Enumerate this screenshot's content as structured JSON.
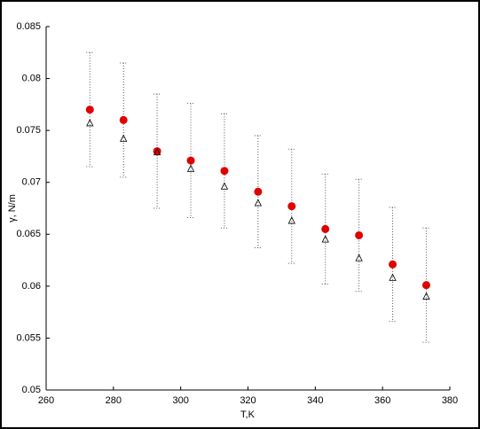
{
  "chart_data": {
    "type": "scatter",
    "x_label": "T,K",
    "y_label": "γ, N/m",
    "x": [
      273,
      283,
      293,
      303,
      313,
      323,
      333,
      343,
      353,
      363,
      373
    ],
    "series": [
      {
        "color": "#e00000",
        "marker": "circle",
        "values": [
          0.077,
          0.076,
          0.073,
          0.0721,
          0.0711,
          0.0691,
          0.0677,
          0.0655,
          0.0649,
          0.0621,
          0.0601
        ],
        "errors": [
          0.0055,
          0.0055,
          0.0055,
          0.0055,
          0.0055,
          0.0054,
          0.0055,
          0.0053,
          0.0054,
          0.0055,
          0.0055
        ]
      },
      {
        "color": "#000000",
        "marker": "triangle",
        "values": [
          0.0757,
          0.0742,
          0.0729,
          0.0713,
          0.0696,
          0.068,
          0.0663,
          0.0645,
          0.0627,
          0.0608,
          0.059
        ]
      }
    ],
    "xlim": [
      260,
      380
    ],
    "xticks": [
      260,
      280,
      300,
      320,
      340,
      360,
      380
    ],
    "ylim": [
      0.05,
      0.085
    ],
    "yticks": [
      0.05,
      0.055,
      0.06,
      0.065,
      0.07,
      0.075,
      0.08,
      0.085
    ]
  }
}
